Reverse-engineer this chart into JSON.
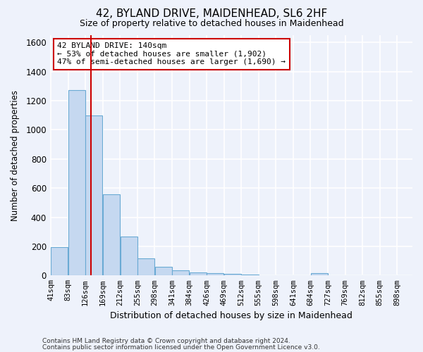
{
  "title1": "42, BYLAND DRIVE, MAIDENHEAD, SL6 2HF",
  "title2": "Size of property relative to detached houses in Maidenhead",
  "xlabel": "Distribution of detached houses by size in Maidenhead",
  "ylabel": "Number of detached properties",
  "footnote1": "Contains HM Land Registry data © Crown copyright and database right 2024.",
  "footnote2": "Contains public sector information licensed under the Open Government Licence v3.0.",
  "annotation_title": "42 BYLAND DRIVE: 140sqm",
  "annotation_line1": "← 53% of detached houses are smaller (1,902)",
  "annotation_line2": "47% of semi-detached houses are larger (1,690) →",
  "bar_color": "#c5d8f0",
  "bar_edge_color": "#6aaad4",
  "highlight_line_color": "#cc0000",
  "background_color": "#eef2fb",
  "grid_color": "#ffffff",
  "bins": [
    "41sqm",
    "83sqm",
    "126sqm",
    "169sqm",
    "212sqm",
    "255sqm",
    "298sqm",
    "341sqm",
    "384sqm",
    "426sqm",
    "469sqm",
    "512sqm",
    "555sqm",
    "598sqm",
    "641sqm",
    "684sqm",
    "727sqm",
    "769sqm",
    "812sqm",
    "855sqm",
    "898sqm"
  ],
  "values": [
    197,
    1272,
    1097,
    557,
    267,
    118,
    58,
    33,
    23,
    18,
    13,
    8,
    3,
    0,
    0,
    18,
    0,
    0,
    0,
    0,
    0
  ],
  "highlight_x": 140,
  "x_min": 41,
  "x_max": 898,
  "bin_width": 43,
  "ylim": [
    0,
    1650
  ],
  "yticks": [
    0,
    200,
    400,
    600,
    800,
    1000,
    1200,
    1400,
    1600
  ]
}
